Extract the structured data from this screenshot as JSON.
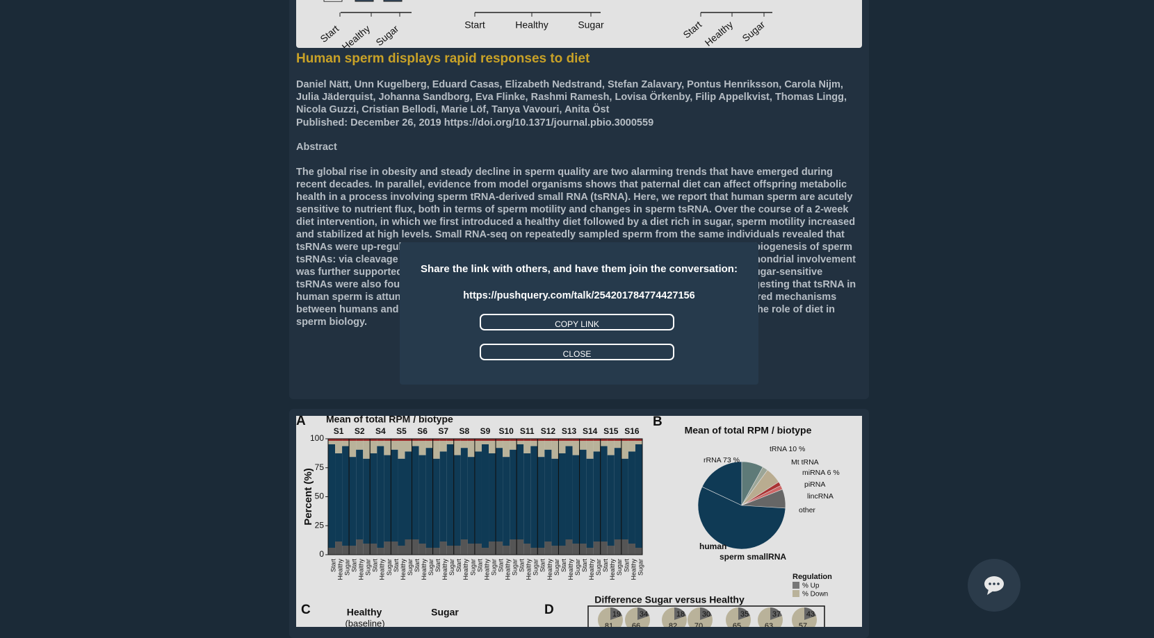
{
  "top_figure": {
    "labels": [
      "Start",
      "Healthy",
      "Sugar"
    ]
  },
  "article": {
    "title": "Human sperm displays rapid responses to diet",
    "authors": "Daniel Nätt, Unn Kugelberg, Eduard Casas, Elizabeth Nedstrand, Stefan Zalavary, Pontus Henriksson, Carola Nijm, Julia Jäderquist, Johanna Sandborg, Eva Flinke, Rashmi Ramesh, Lovisa Örkenby, Filip Appelkvist, Thomas Lingg, Nicola Guzzi, Cristian Bellodi, Marie Löf, Tanya Vavouri, Anita Öst",
    "published": "Published: December 26, 2019 https://doi.org/10.1371/journal.pbio.3000559",
    "abstract_heading": "Abstract",
    "abstract": "The global rise in obesity and steady decline in sperm quality are two alarming trends that have emerged during recent decades. In parallel, evidence from model organisms shows that paternal diet can affect offspring metabolic health in a process involving sperm tRNA-derived small RNA (tsRNA). Here, we report that human sperm are acutely sensitive to nutrient flux, both in terms of sperm motility and changes in sperm tsRNA. Over the course of a 2-week diet intervention, in which we first introduced a healthy diet followed by a diet rich in sugar, sperm motility increased and stabilized at high levels. Small RNA-seq on repeatedly sampled sperm from the same individuals revealed that tsRNAs were up-regulated by sugar intake. Our data point to two independent pathways for the biogenesis of sperm tsRNAs: via cleavage in the T-loop of mature nuclear tRNAs and via mitochondrial tRNAs. Mitochondrial involvement was further supported by a parallel increase in mitochondrial tsRNAs. Notably, the changes in sugar-sensitive tsRNAs were also found to be negatively associated with obesity in an independent cohort, suggesting that tsRNA in human sperm is attuned with the paternal metabolic state. Importantly, our findings suggest shared mechanisms between humans and model organisms for paternal tsRNA, which provide novel insights about the role of diet in sperm biology."
  },
  "figure": {
    "panel_a": {
      "letter": "A",
      "title": "Mean of total RPM / biotype",
      "samples": [
        "S1",
        "S2",
        "S4",
        "S5",
        "S6",
        "S7",
        "S8",
        "S9",
        "S10",
        "S11",
        "S12",
        "S13",
        "S14",
        "S15",
        "S16"
      ],
      "y_axis_label": "Percent (%)",
      "yticks": [
        100,
        75,
        50,
        25,
        0
      ],
      "conditions": [
        "Start",
        "Healthy",
        "Sugar"
      ]
    },
    "panel_b": {
      "letter": "B",
      "title": "Mean of total RPM / biotype",
      "labels": [
        "tRNA 10 %",
        "rRNA 73 %",
        "Mt tRNA",
        "miRNA 6 %",
        "piRNA",
        "lincRNA",
        "other",
        "human",
        "sperm smallRNA"
      ],
      "legend_title": "Regulation",
      "legend": [
        "% Up",
        "% Down"
      ]
    },
    "panel_c": {
      "letter": "C",
      "headers": [
        "Healthy",
        "Sugar"
      ],
      "subheader": "(baseline)"
    },
    "panel_d": {
      "letter": "D",
      "title": "Difference Sugar versus Healthy",
      "circles": [
        [
          19,
          81
        ],
        [
          34,
          66
        ],
        [
          18,
          82
        ],
        [
          30,
          70
        ],
        [
          35,
          65
        ],
        [
          37,
          63
        ],
        [
          43,
          57
        ]
      ]
    }
  },
  "modal": {
    "message": "Share the link with others, and have them join the conversation:",
    "link": "https://pushquery.com/talk/254201784774427156",
    "buttons": [
      "COPY LINK",
      "CLOSE"
    ]
  }
}
